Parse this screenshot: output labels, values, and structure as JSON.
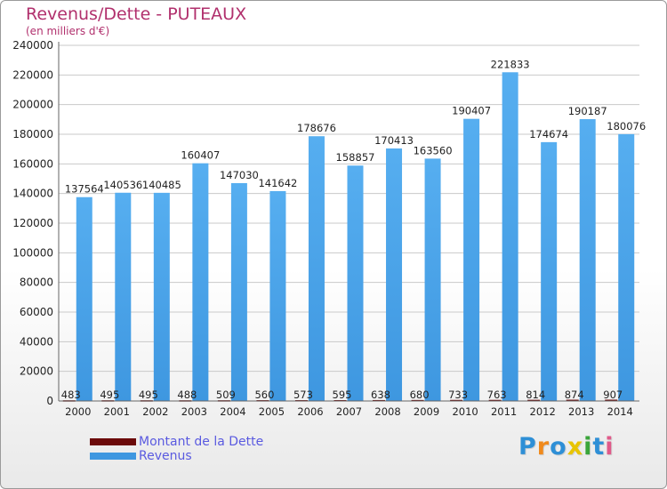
{
  "chart_data": {
    "type": "bar",
    "title": "Revenus/Dette - PUTEAUX",
    "subtitle": "(en milliers d'€)",
    "categories": [
      "2000",
      "2001",
      "2002",
      "2003",
      "2004",
      "2005",
      "2006",
      "2007",
      "2008",
      "2009",
      "2010",
      "2011",
      "2012",
      "2013",
      "2014"
    ],
    "series": [
      {
        "name": "Montant de la Dette",
        "color": "#6b0a0a",
        "values": [
          483,
          495,
          495,
          488,
          509,
          560,
          573,
          595,
          638,
          680,
          733,
          763,
          814,
          874,
          907
        ]
      },
      {
        "name": "Revenus",
        "color": "#3e97e0",
        "values": [
          137564,
          140536,
          140485,
          160407,
          147030,
          141642,
          178676,
          158857,
          170413,
          163560,
          190407,
          221833,
          174674,
          190187,
          180076
        ]
      }
    ],
    "yticks": [
      0,
      20000,
      40000,
      60000,
      80000,
      100000,
      120000,
      140000,
      160000,
      180000,
      200000,
      220000,
      240000
    ],
    "ylim": [
      0,
      240000
    ],
    "grid": true,
    "legend_position": "bottom-left"
  },
  "logo": {
    "text": "Proxiti",
    "colors": [
      "#2e8fd6",
      "#f08a1c",
      "#2e8fd6",
      "#e8c400",
      "#3aa53a",
      "#2e8fd6",
      "#e05a8a"
    ]
  }
}
